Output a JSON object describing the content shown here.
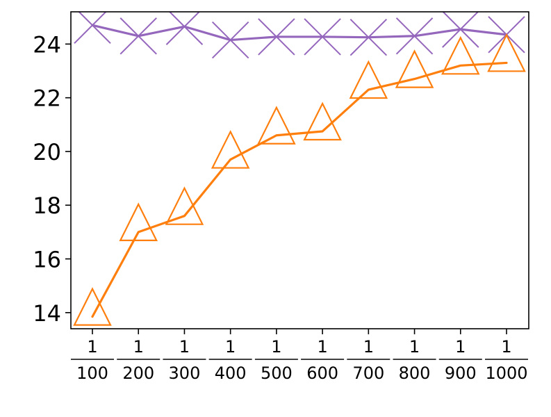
{
  "chart_data": {
    "type": "line",
    "title": "",
    "xlabel": "",
    "ylabel": "",
    "x_tick_labels": [
      {
        "num": "1",
        "den": "100"
      },
      {
        "num": "1",
        "den": "200"
      },
      {
        "num": "1",
        "den": "300"
      },
      {
        "num": "1",
        "den": "400"
      },
      {
        "num": "1",
        "den": "500"
      },
      {
        "num": "1",
        "den": "600"
      },
      {
        "num": "1",
        "den": "700"
      },
      {
        "num": "1",
        "den": "800"
      },
      {
        "num": "1",
        "den": "900"
      },
      {
        "num": "1",
        "den": "1000"
      }
    ],
    "y_ticks": [
      "14",
      "16",
      "18",
      "20",
      "22",
      "24"
    ],
    "ylim": [
      13.4,
      25.2
    ],
    "grid": false,
    "legend": "none",
    "series": [
      {
        "color": "#9467bd",
        "marker": "x",
        "values": [
          24.7,
          24.3,
          24.65,
          24.15,
          24.27,
          24.27,
          24.25,
          24.3,
          24.55,
          24.35
        ]
      },
      {
        "color": "#ff7f0e",
        "marker": "triangle-open",
        "values": [
          13.85,
          17.0,
          17.6,
          19.7,
          20.6,
          20.75,
          22.3,
          22.7,
          23.2,
          23.3
        ]
      }
    ]
  }
}
